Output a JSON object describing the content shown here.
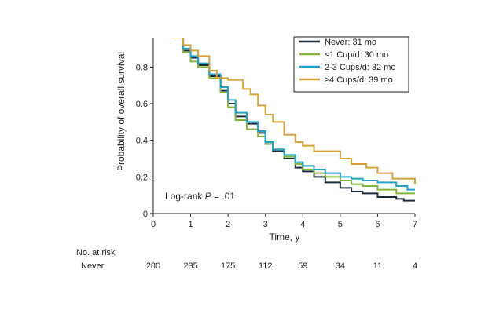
{
  "chart_data": {
    "type": "line",
    "step": true,
    "xlabel": "Time, y",
    "ylabel": "Probability of overall survival",
    "xlim": [
      0,
      7
    ],
    "ylim": [
      0,
      0.96
    ],
    "xticks": [
      0,
      1,
      2,
      3,
      4,
      5,
      6,
      7
    ],
    "yticks": [
      0,
      0.2,
      0.4,
      0.6,
      0.8
    ],
    "ytick_labels": [
      "0",
      "0.2",
      "0.4",
      "0.6",
      "0.8"
    ],
    "legend_position": "top-right",
    "annotation": {
      "prefix": "Log-rank ",
      "italic": "P",
      "suffix": " = .01"
    },
    "series": [
      {
        "name": "Never: 31 mo",
        "color": "#1e2d3b",
        "x": [
          0.5,
          0.8,
          1,
          1.2,
          1.5,
          1.8,
          2,
          2.2,
          2.5,
          2.8,
          3,
          3.2,
          3.5,
          3.8,
          4,
          4.3,
          4.6,
          5,
          5.3,
          5.6,
          6,
          6.5,
          6.7,
          7
        ],
        "y": [
          0.96,
          0.89,
          0.85,
          0.81,
          0.75,
          0.67,
          0.6,
          0.53,
          0.49,
          0.44,
          0.38,
          0.34,
          0.3,
          0.25,
          0.23,
          0.2,
          0.17,
          0.14,
          0.12,
          0.11,
          0.09,
          0.08,
          0.07,
          0.07
        ]
      },
      {
        "name": "≤1 Cup/d: 30 mo",
        "color": "#86b43c",
        "x": [
          0.5,
          0.8,
          1,
          1.2,
          1.5,
          1.8,
          2,
          2.2,
          2.5,
          2.8,
          3,
          3.2,
          3.5,
          3.8,
          4,
          4.3,
          4.6,
          5,
          5.3,
          5.6,
          6,
          6.5,
          7
        ],
        "y": [
          0.96,
          0.88,
          0.83,
          0.8,
          0.74,
          0.66,
          0.58,
          0.51,
          0.46,
          0.42,
          0.38,
          0.35,
          0.31,
          0.27,
          0.24,
          0.22,
          0.2,
          0.18,
          0.16,
          0.15,
          0.13,
          0.11,
          0.11
        ]
      },
      {
        "name": "2-3 Cups/d: 32 mo",
        "color": "#1fa3c9",
        "x": [
          0.5,
          0.8,
          1,
          1.2,
          1.5,
          1.8,
          2,
          2.2,
          2.5,
          2.8,
          3,
          3.2,
          3.5,
          3.8,
          4,
          4.3,
          4.6,
          5,
          5.3,
          5.6,
          6,
          6.5,
          6.8,
          7
        ],
        "y": [
          0.96,
          0.9,
          0.86,
          0.82,
          0.76,
          0.69,
          0.62,
          0.55,
          0.5,
          0.45,
          0.39,
          0.35,
          0.32,
          0.28,
          0.26,
          0.24,
          0.22,
          0.2,
          0.19,
          0.18,
          0.17,
          0.15,
          0.13,
          0.13
        ]
      },
      {
        "name": "≥4 Cups/d: 39 mo",
        "color": "#d4a13a",
        "x": [
          0.5,
          0.8,
          1,
          1.2,
          1.5,
          1.7,
          2,
          2.2,
          2.4,
          2.6,
          2.8,
          3,
          3.2,
          3.5,
          3.8,
          4,
          4.3,
          4.7,
          5,
          5.3,
          5.7,
          6,
          6.4,
          7
        ],
        "y": [
          0.96,
          0.92,
          0.89,
          0.86,
          0.78,
          0.74,
          0.73,
          0.73,
          0.68,
          0.65,
          0.59,
          0.54,
          0.5,
          0.43,
          0.39,
          0.37,
          0.34,
          0.34,
          0.3,
          0.27,
          0.25,
          0.22,
          0.19,
          0.16
        ]
      }
    ],
    "risk_table": {
      "title": "No. at risk",
      "rows": [
        {
          "label": "Never",
          "values": [
            "280",
            "235",
            "175",
            "112",
            "59",
            "34",
            "11",
            "4"
          ]
        }
      ]
    }
  }
}
